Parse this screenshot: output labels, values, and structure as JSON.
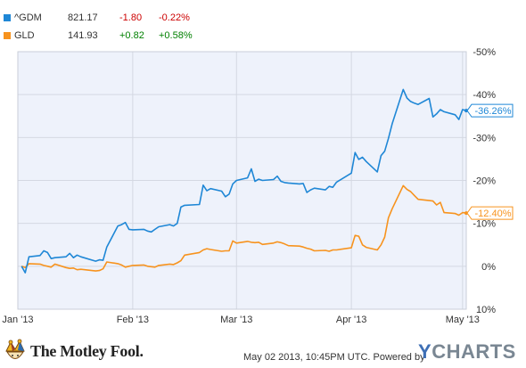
{
  "legend": [
    {
      "symbol": "^GDM",
      "price": "821.17",
      "change": "-1.80",
      "pct": "-0.22%",
      "color": "#1f87d6",
      "change_color": "#cc0000"
    },
    {
      "symbol": "GLD",
      "price": "141.93",
      "change": "+0.82",
      "pct": "+0.58%",
      "color": "#f7931e",
      "change_color": "#008000"
    }
  ],
  "footer": {
    "brand": "The Motley Fool.",
    "timestamp": "May 02 2013, 10:45PM UTC.  Powered by",
    "ycharts_y": "Y",
    "ycharts_rest": "CHARTS"
  },
  "chart_data": {
    "type": "line",
    "x_axis": {
      "type": "date",
      "range": [
        "2013-01-01",
        "2013-05-02"
      ],
      "tick_labels": [
        "Jan '13",
        "Feb '13",
        "Mar '13",
        "Apr '13",
        "May '13"
      ],
      "tick_dates": [
        "2013-01-01",
        "2013-02-01",
        "2013-03-01",
        "2013-04-01",
        "2013-05-01"
      ]
    },
    "y_axis": {
      "range": [
        -50,
        10
      ],
      "unit": "%",
      "ticks": [
        10,
        0,
        -10,
        -20,
        -30,
        -40,
        -50
      ],
      "tick_labels": [
        "10%",
        "0%",
        "-10%",
        "-20%",
        "-30%",
        "-40%",
        "-50%"
      ],
      "position": "right"
    },
    "grid": true,
    "background": "#eef2fb",
    "series": [
      {
        "name": "^GDM",
        "color": "#1f87d6",
        "end_label": "-36.26%",
        "points": [
          [
            "2013-01-02",
            0.0
          ],
          [
            "2013-01-03",
            1.5
          ],
          [
            "2013-01-04",
            -2.2
          ],
          [
            "2013-01-07",
            -2.5
          ],
          [
            "2013-01-08",
            -3.6
          ],
          [
            "2013-01-09",
            -3.2
          ],
          [
            "2013-01-10",
            -1.8
          ],
          [
            "2013-01-11",
            -2.0
          ],
          [
            "2013-01-14",
            -2.2
          ],
          [
            "2013-01-15",
            -3.0
          ],
          [
            "2013-01-16",
            -2.0
          ],
          [
            "2013-01-17",
            -2.6
          ],
          [
            "2013-01-18",
            -2.2
          ],
          [
            "2013-01-22",
            -1.2
          ],
          [
            "2013-01-23",
            -1.5
          ],
          [
            "2013-01-24",
            -1.4
          ],
          [
            "2013-01-25",
            -4.5
          ],
          [
            "2013-01-28",
            -9.4
          ],
          [
            "2013-01-29",
            -9.7
          ],
          [
            "2013-01-30",
            -10.2
          ],
          [
            "2013-01-31",
            -8.6
          ],
          [
            "2013-02-01",
            -8.5
          ],
          [
            "2013-02-04",
            -8.6
          ],
          [
            "2013-02-05",
            -8.2
          ],
          [
            "2013-02-06",
            -8.0
          ],
          [
            "2013-02-07",
            -8.6
          ],
          [
            "2013-02-08",
            -9.2
          ],
          [
            "2013-02-11",
            -9.7
          ],
          [
            "2013-02-12",
            -9.4
          ],
          [
            "2013-02-13",
            -10.0
          ],
          [
            "2013-02-14",
            -13.8
          ],
          [
            "2013-02-15",
            -14.2
          ],
          [
            "2013-02-19",
            -14.4
          ],
          [
            "2013-02-20",
            -18.9
          ],
          [
            "2013-02-21",
            -17.6
          ],
          [
            "2013-02-22",
            -18.1
          ],
          [
            "2013-02-25",
            -17.5
          ],
          [
            "2013-02-26",
            -16.2
          ],
          [
            "2013-02-27",
            -16.8
          ],
          [
            "2013-02-28",
            -19.2
          ],
          [
            "2013-03-01",
            -20.0
          ],
          [
            "2013-03-04",
            -20.6
          ],
          [
            "2013-03-05",
            -22.7
          ],
          [
            "2013-03-06",
            -19.8
          ],
          [
            "2013-03-07",
            -20.3
          ],
          [
            "2013-03-08",
            -20.0
          ],
          [
            "2013-03-11",
            -20.2
          ],
          [
            "2013-03-12",
            -21.0
          ],
          [
            "2013-03-13",
            -19.8
          ],
          [
            "2013-03-14",
            -19.5
          ],
          [
            "2013-03-15",
            -19.4
          ],
          [
            "2013-03-18",
            -19.2
          ],
          [
            "2013-03-19",
            -19.3
          ],
          [
            "2013-03-20",
            -17.2
          ],
          [
            "2013-03-21",
            -17.8
          ],
          [
            "2013-03-22",
            -18.2
          ],
          [
            "2013-03-25",
            -17.8
          ],
          [
            "2013-03-26",
            -18.6
          ],
          [
            "2013-03-27",
            -18.4
          ],
          [
            "2013-03-28",
            -19.6
          ],
          [
            "2013-04-01",
            -21.7
          ],
          [
            "2013-04-02",
            -26.5
          ],
          [
            "2013-04-03",
            -24.9
          ],
          [
            "2013-04-04",
            -25.4
          ],
          [
            "2013-04-05",
            -24.4
          ],
          [
            "2013-04-08",
            -22.0
          ],
          [
            "2013-04-09",
            -25.8
          ],
          [
            "2013-04-10",
            -26.8
          ],
          [
            "2013-04-11",
            -29.8
          ],
          [
            "2013-04-12",
            -33.2
          ],
          [
            "2013-04-15",
            -41.2
          ],
          [
            "2013-04-16",
            -39.2
          ],
          [
            "2013-04-17",
            -38.4
          ],
          [
            "2013-04-18",
            -38.0
          ],
          [
            "2013-04-19",
            -37.7
          ],
          [
            "2013-04-22",
            -39.1
          ],
          [
            "2013-04-23",
            -34.8
          ],
          [
            "2013-04-24",
            -35.5
          ],
          [
            "2013-04-25",
            -36.5
          ],
          [
            "2013-04-26",
            -36.0
          ],
          [
            "2013-04-29",
            -35.3
          ],
          [
            "2013-04-30",
            -34.2
          ],
          [
            "2013-05-01",
            -36.5
          ],
          [
            "2013-05-02",
            -36.26
          ]
        ]
      },
      {
        "name": "GLD",
        "color": "#f7931e",
        "end_label": "-12.40%",
        "points": [
          [
            "2013-01-02",
            0.0
          ],
          [
            "2013-01-03",
            0.3
          ],
          [
            "2013-01-04",
            -0.6
          ],
          [
            "2013-01-07",
            -0.5
          ],
          [
            "2013-01-08",
            -0.2
          ],
          [
            "2013-01-09",
            0.0
          ],
          [
            "2013-01-10",
            0.2
          ],
          [
            "2013-01-11",
            -0.5
          ],
          [
            "2013-01-14",
            0.3
          ],
          [
            "2013-01-15",
            0.5
          ],
          [
            "2013-01-16",
            0.4
          ],
          [
            "2013-01-17",
            0.8
          ],
          [
            "2013-01-18",
            0.7
          ],
          [
            "2013-01-22",
            1.1
          ],
          [
            "2013-01-23",
            1.0
          ],
          [
            "2013-01-24",
            0.6
          ],
          [
            "2013-01-25",
            -1.0
          ],
          [
            "2013-01-28",
            -0.6
          ],
          [
            "2013-01-29",
            -0.3
          ],
          [
            "2013-01-30",
            0.2
          ],
          [
            "2013-01-31",
            0.0
          ],
          [
            "2013-02-01",
            -0.2
          ],
          [
            "2013-02-04",
            -0.3
          ],
          [
            "2013-02-05",
            0.0
          ],
          [
            "2013-02-06",
            0.1
          ],
          [
            "2013-02-07",
            0.2
          ],
          [
            "2013-02-08",
            -0.2
          ],
          [
            "2013-02-11",
            -0.5
          ],
          [
            "2013-02-12",
            -0.4
          ],
          [
            "2013-02-13",
            -0.8
          ],
          [
            "2013-02-14",
            -1.3
          ],
          [
            "2013-02-15",
            -2.6
          ],
          [
            "2013-02-19",
            -3.2
          ],
          [
            "2013-02-20",
            -3.8
          ],
          [
            "2013-02-21",
            -4.1
          ],
          [
            "2013-02-22",
            -3.9
          ],
          [
            "2013-02-25",
            -3.5
          ],
          [
            "2013-02-26",
            -3.6
          ],
          [
            "2013-02-27",
            -3.6
          ],
          [
            "2013-02-28",
            -5.9
          ],
          [
            "2013-03-01",
            -5.4
          ],
          [
            "2013-03-04",
            -5.8
          ],
          [
            "2013-03-05",
            -5.6
          ],
          [
            "2013-03-06",
            -5.5
          ],
          [
            "2013-03-07",
            -5.6
          ],
          [
            "2013-03-08",
            -5.1
          ],
          [
            "2013-03-11",
            -5.4
          ],
          [
            "2013-03-12",
            -5.7
          ],
          [
            "2013-03-13",
            -5.5
          ],
          [
            "2013-03-14",
            -5.2
          ],
          [
            "2013-03-15",
            -4.8
          ],
          [
            "2013-03-18",
            -4.7
          ],
          [
            "2013-03-19",
            -4.5
          ],
          [
            "2013-03-20",
            -4.2
          ],
          [
            "2013-03-21",
            -4.0
          ],
          [
            "2013-03-22",
            -3.6
          ],
          [
            "2013-03-25",
            -3.7
          ],
          [
            "2013-03-26",
            -3.5
          ],
          [
            "2013-03-27",
            -3.8
          ],
          [
            "2013-03-28",
            -3.8
          ],
          [
            "2013-04-01",
            -4.3
          ],
          [
            "2013-04-02",
            -7.2
          ],
          [
            "2013-04-03",
            -7.0
          ],
          [
            "2013-04-04",
            -5.0
          ],
          [
            "2013-04-05",
            -4.4
          ],
          [
            "2013-04-08",
            -3.8
          ],
          [
            "2013-04-09",
            -5.0
          ],
          [
            "2013-04-10",
            -6.8
          ],
          [
            "2013-04-11",
            -11.3
          ],
          [
            "2013-04-12",
            -13.4
          ],
          [
            "2013-04-15",
            -18.8
          ],
          [
            "2013-04-16",
            -17.9
          ],
          [
            "2013-04-17",
            -17.4
          ],
          [
            "2013-04-18",
            -16.5
          ],
          [
            "2013-04-19",
            -15.6
          ],
          [
            "2013-04-22",
            -15.3
          ],
          [
            "2013-04-23",
            -15.2
          ],
          [
            "2013-04-24",
            -14.3
          ],
          [
            "2013-04-25",
            -14.9
          ],
          [
            "2013-04-26",
            -12.5
          ],
          [
            "2013-04-29",
            -12.3
          ],
          [
            "2013-04-30",
            -11.9
          ],
          [
            "2013-05-01",
            -12.5
          ],
          [
            "2013-05-02",
            -12.4
          ]
        ]
      }
    ]
  }
}
